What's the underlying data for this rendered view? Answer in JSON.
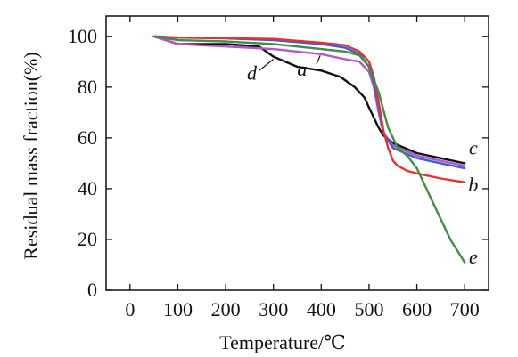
{
  "chart_data": {
    "type": "line",
    "title": "",
    "xlabel": "Temperature/℃",
    "ylabel": "Residual mass fraction(%)",
    "xlim": [
      -50,
      750
    ],
    "ylim": [
      0,
      108
    ],
    "xticks": [
      0,
      100,
      200,
      300,
      400,
      500,
      600,
      700
    ],
    "yticks": [
      0,
      20,
      40,
      60,
      80,
      100
    ],
    "grid": false,
    "legend": "none",
    "series": [
      {
        "name": "a",
        "color": "#b455c8",
        "x": [
          50,
          100,
          200,
          300,
          400,
          450,
          480,
          500,
          510,
          520,
          530,
          550,
          600,
          650,
          700
        ],
        "y": [
          100,
          97,
          96,
          95,
          93,
          91,
          90,
          86,
          80,
          70,
          62,
          57,
          53,
          51,
          49
        ]
      },
      {
        "name": "b",
        "color": "#e8312c",
        "x": [
          50,
          100,
          200,
          300,
          400,
          450,
          480,
          500,
          510,
          520,
          530,
          540,
          550,
          560,
          580,
          600,
          650,
          700
        ],
        "y": [
          100,
          99.5,
          99.3,
          99,
          97.5,
          96.5,
          94,
          90,
          84,
          74,
          63,
          56,
          51,
          49,
          47,
          46,
          44,
          42.5
        ]
      },
      {
        "name": "c",
        "color": "#3a5ed8",
        "x": [
          50,
          100,
          200,
          300,
          400,
          450,
          480,
          500,
          510,
          520,
          530,
          550,
          600,
          650,
          700
        ],
        "y": [
          100,
          99.5,
          99.2,
          98.5,
          97,
          95.5,
          93,
          88,
          82,
          72,
          62,
          56,
          52,
          50,
          48
        ]
      },
      {
        "name": "d",
        "color": "#111111",
        "x": [
          50,
          100,
          200,
          270,
          300,
          350,
          400,
          440,
          470,
          490,
          500,
          510,
          520,
          530,
          550,
          600,
          650,
          700
        ],
        "y": [
          100,
          97,
          97,
          96,
          92,
          88,
          86.5,
          84,
          80,
          76,
          72,
          68,
          64,
          61,
          58,
          54,
          52,
          50
        ]
      },
      {
        "name": "e",
        "color": "#3e8f46",
        "x": [
          50,
          100,
          200,
          300,
          400,
          450,
          480,
          500,
          520,
          540,
          560,
          580,
          600,
          640,
          670,
          700
        ],
        "y": [
          100,
          98.5,
          98,
          97,
          95,
          94,
          92.5,
          88,
          78,
          64,
          56,
          53,
          48,
          32,
          20,
          11
        ]
      }
    ]
  }
}
